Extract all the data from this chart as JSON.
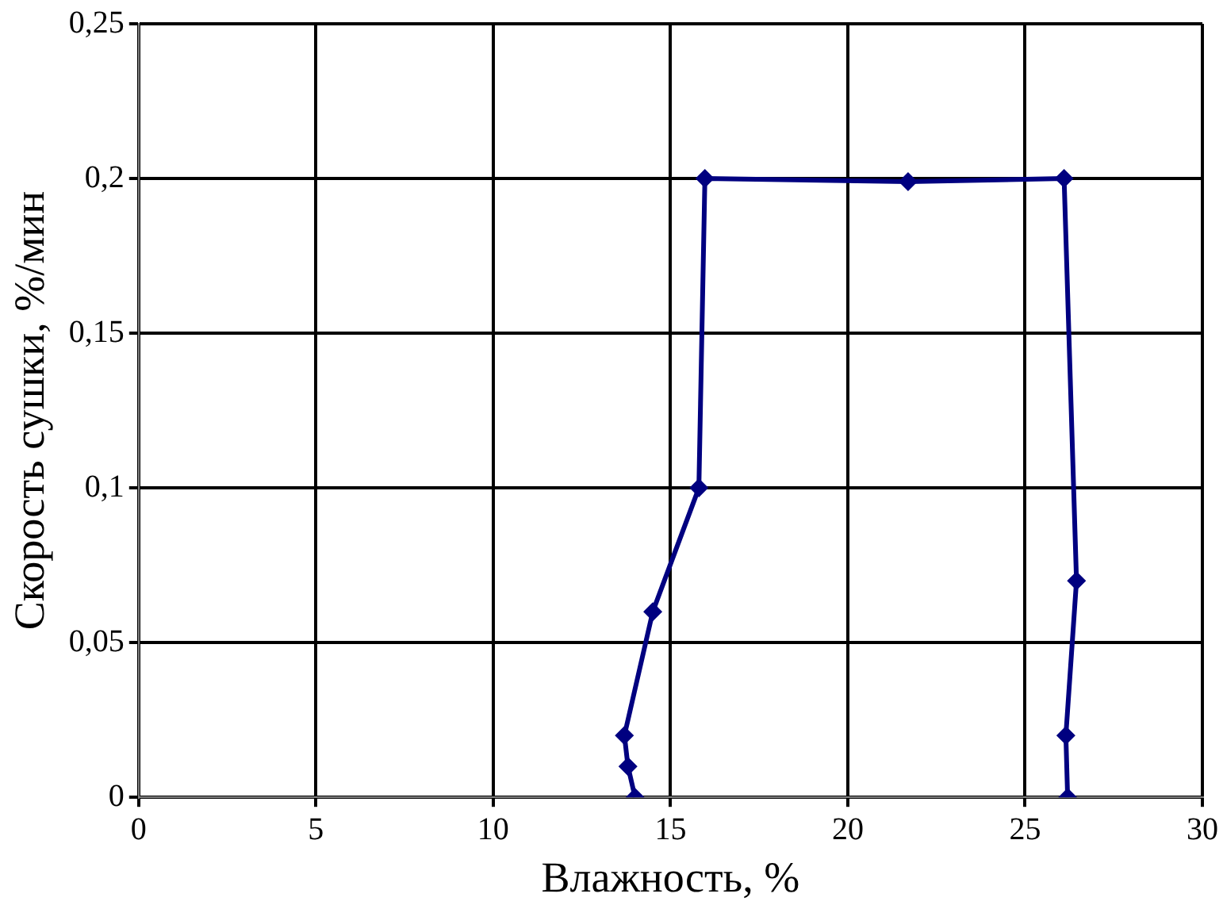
{
  "chart_data": {
    "type": "line",
    "xlabel": "Влажность, %",
    "ylabel": "Скорость сушки, %/мин",
    "x": [
      26.2,
      26.15,
      26.45,
      26.1,
      21.7,
      15.97,
      15.8,
      14.5,
      13.7,
      13.8,
      14.0
    ],
    "series": [
      {
        "color": "#000080",
        "values": [
          0,
          0.02,
          0.07,
          0.2,
          0.199,
          0.2,
          0.1,
          0.06,
          0.02,
          0.01,
          0
        ]
      }
    ],
    "xlim": [
      0,
      30
    ],
    "xticks": [
      0,
      5,
      10,
      15,
      20,
      25,
      30
    ],
    "ylim": [
      0,
      0.25
    ],
    "yticks": [
      {
        "value": 0,
        "label": "0"
      },
      {
        "value": 0.05,
        "label": "0,05"
      },
      {
        "value": 0.1,
        "label": "0,1"
      },
      {
        "value": 0.15,
        "label": "0,15"
      },
      {
        "value": 0.2,
        "label": "0,2"
      },
      {
        "value": 0.25,
        "label": "0,25"
      }
    ],
    "grid": true,
    "legend": false,
    "marker": "diamond",
    "line_style": "solid"
  }
}
